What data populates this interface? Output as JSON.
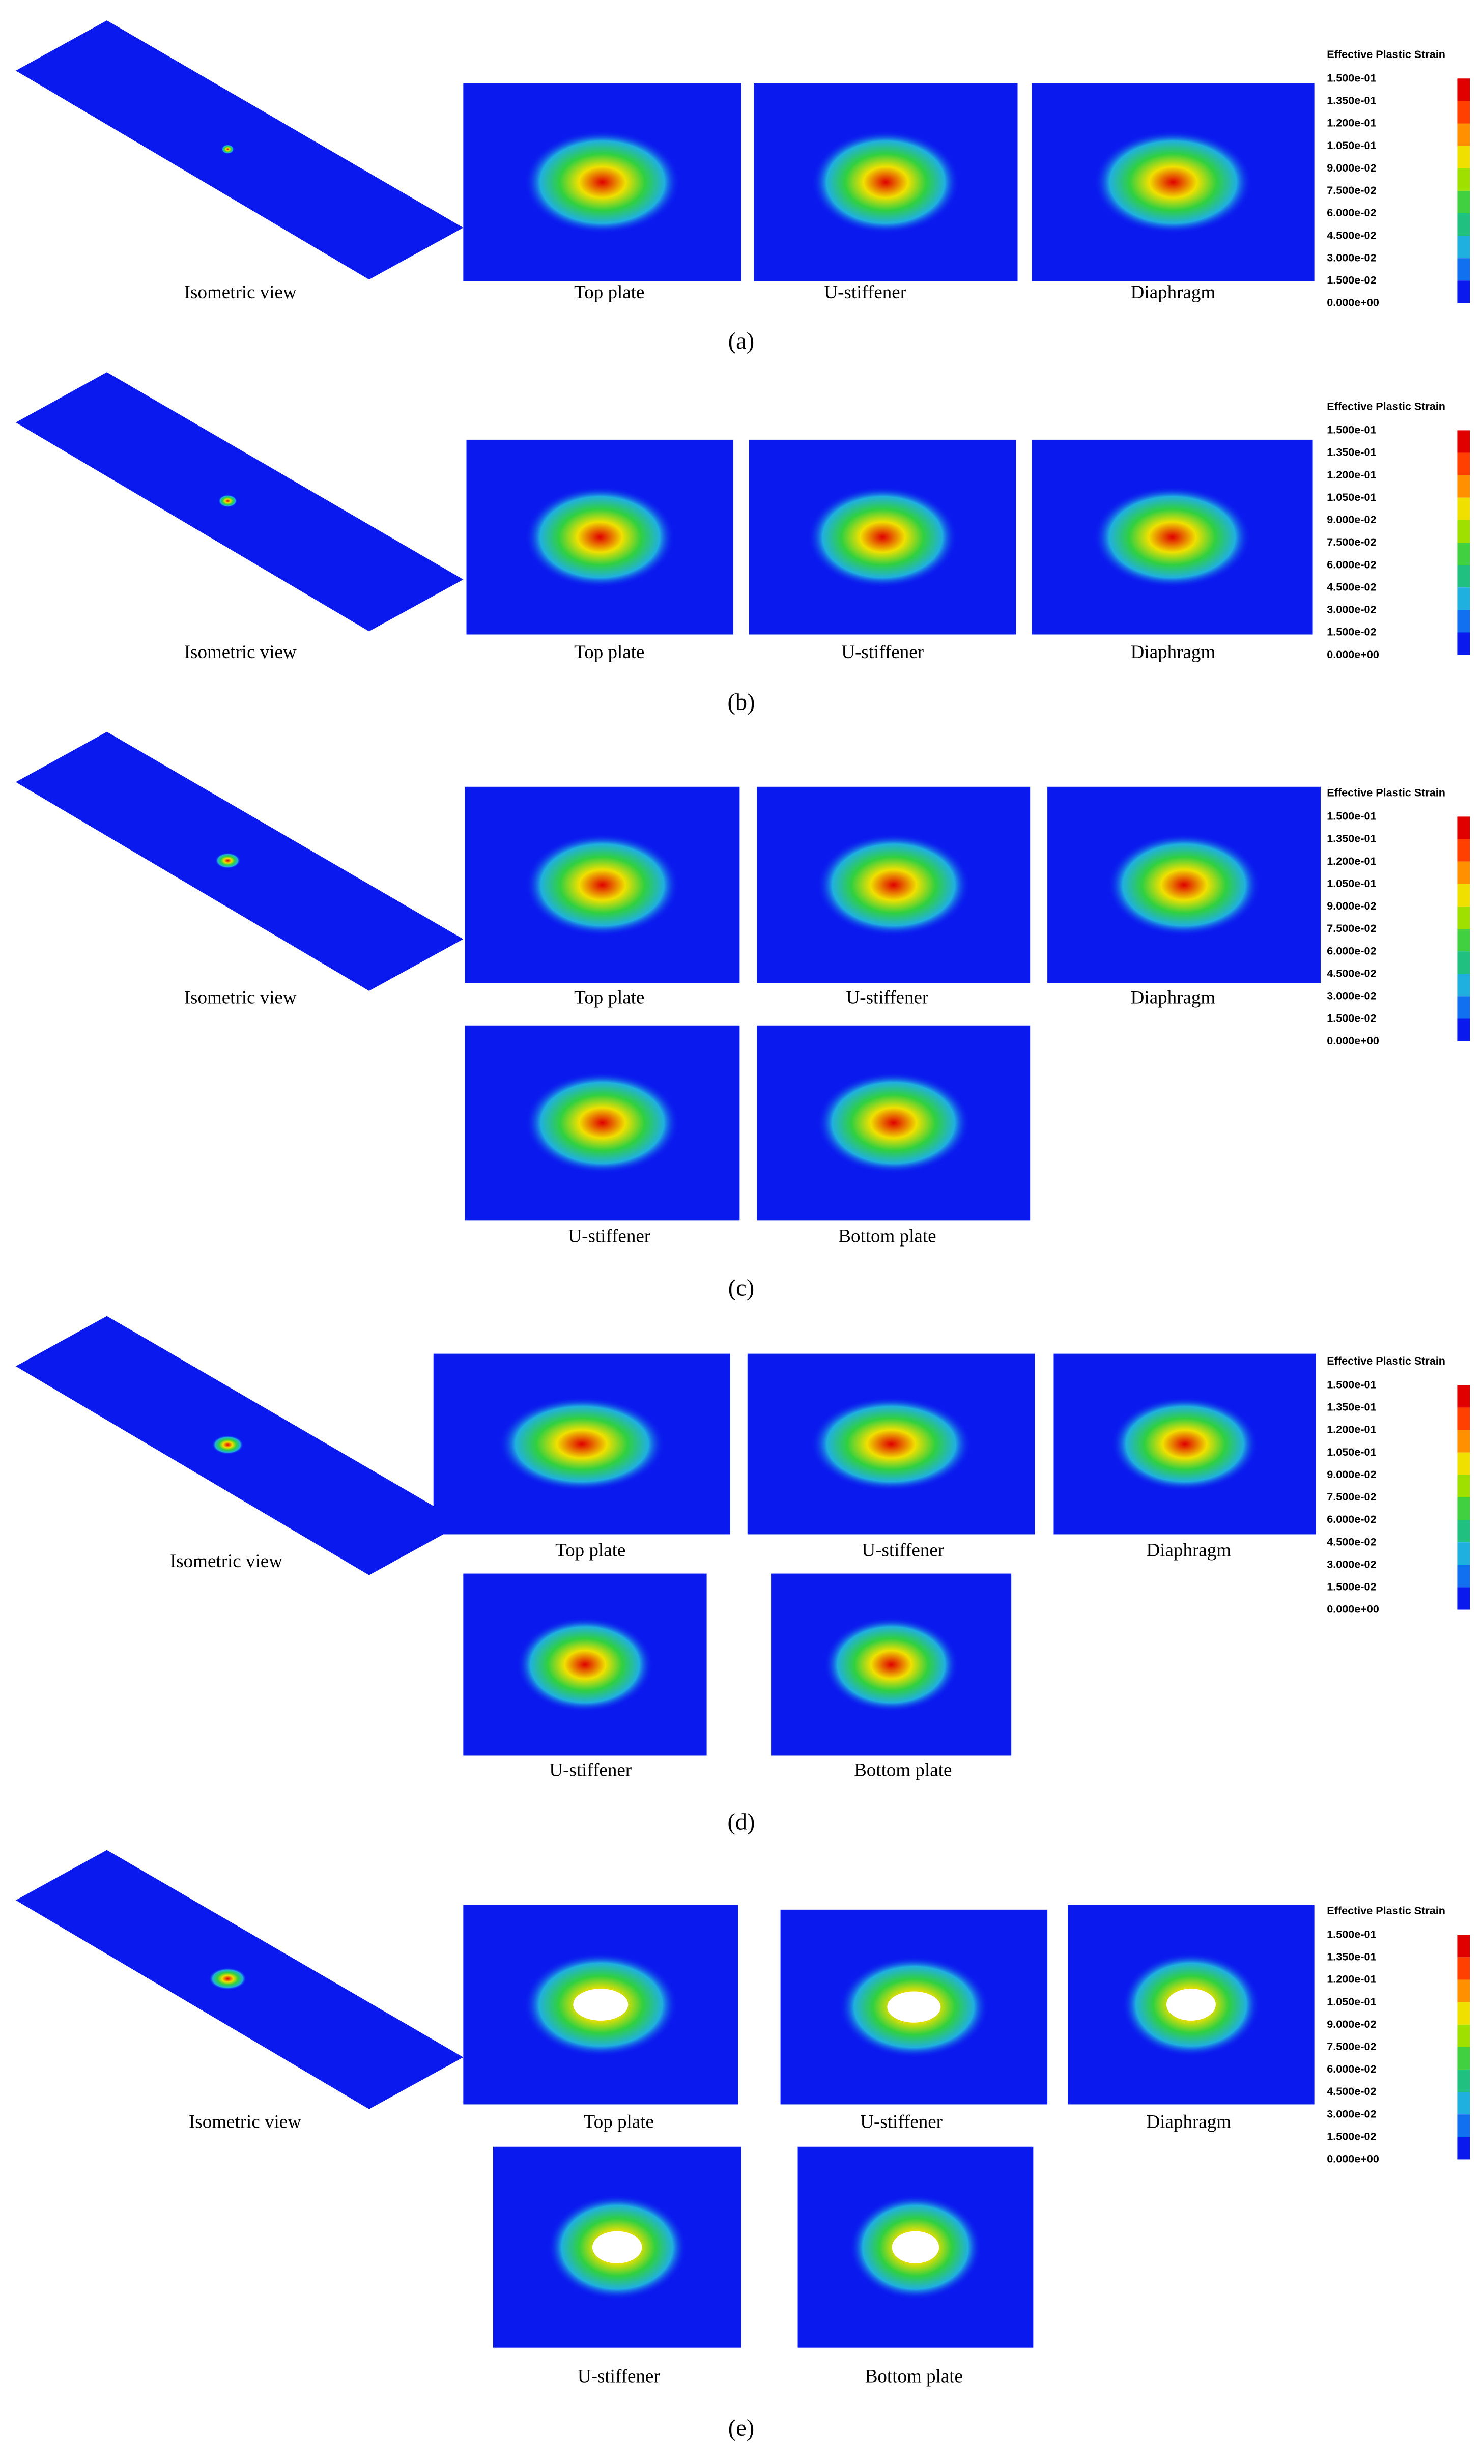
{
  "legend": {
    "title": "Effective Plastic Strain",
    "labels": [
      "1.500e-01",
      "1.350e-01",
      "1.200e-01",
      "1.050e-01",
      "9.000e-02",
      "7.500e-02",
      "6.000e-02",
      "4.500e-02",
      "3.000e-02",
      "1.500e-02",
      "0.000e+00"
    ]
  },
  "panels": [
    {
      "letter": "(a)",
      "views": [
        "Isometric view",
        "Top plate",
        "U-stiffener",
        "Diaphragm"
      ]
    },
    {
      "letter": "(b)",
      "views": [
        "Isometric view",
        "Top plate",
        "U-stiffener",
        "Diaphragm"
      ]
    },
    {
      "letter": "(c)",
      "views": [
        "Isometric view",
        "Top plate",
        "U-stiffener",
        "Diaphragm",
        "U-stiffener",
        "Bottom plate"
      ]
    },
    {
      "letter": "(d)",
      "views": [
        "Isometric view",
        "Top plate",
        "U-stiffener",
        "Diaphragm",
        "U-stiffener",
        "Bottom plate"
      ]
    },
    {
      "letter": "(e)",
      "views": [
        "Isometric view",
        "Top plate",
        "U-stiffener",
        "Diaphragm",
        "U-stiffener",
        "Bottom plate"
      ]
    }
  ]
}
